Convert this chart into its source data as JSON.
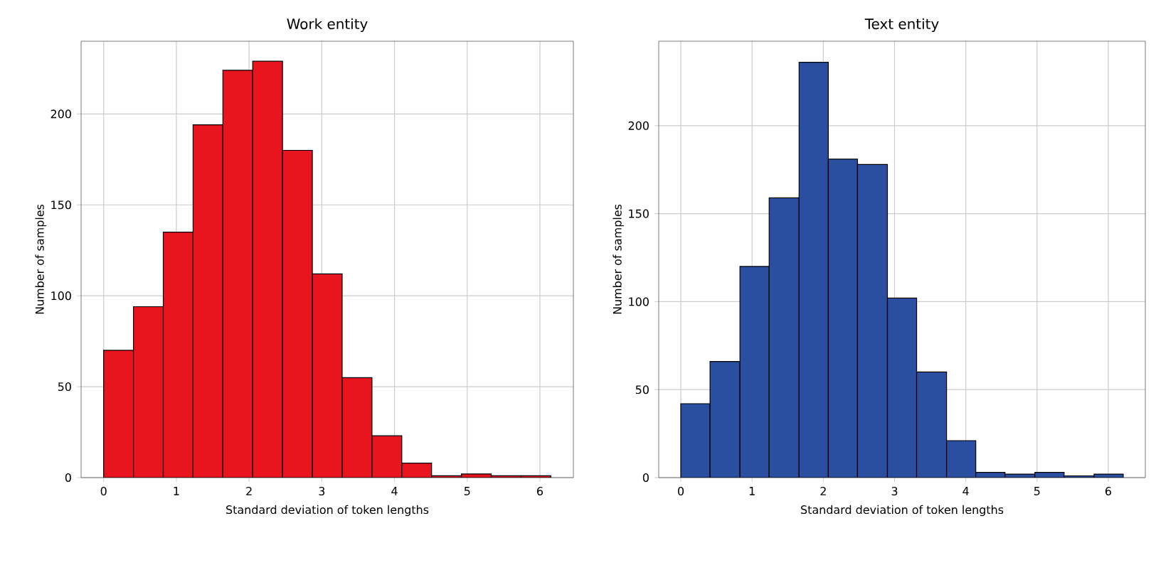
{
  "chart_data": [
    {
      "type": "histogram",
      "title": "Work entity",
      "xlabel": "Standard deviation of token lengths",
      "ylabel": "Number of samples",
      "color": "#e8141e",
      "bins": [
        0,
        0.41,
        0.82,
        1.23,
        1.64,
        2.05,
        2.46,
        2.87,
        3.28,
        3.69,
        4.1,
        4.51,
        4.92,
        5.33,
        5.74,
        6.15
      ],
      "values": [
        70,
        94,
        135,
        194,
        224,
        229,
        180,
        112,
        55,
        23,
        8,
        1,
        2,
        1,
        1
      ],
      "xlim": [
        -0.31,
        6.46
      ],
      "ylim": [
        0,
        240
      ],
      "xticks": [
        0,
        1,
        2,
        3,
        4,
        5,
        6
      ],
      "yticks": [
        0,
        50,
        100,
        150,
        200
      ],
      "grid": true
    },
    {
      "type": "histogram",
      "title": "Text entity",
      "xlabel": "Standard deviation of token lengths",
      "ylabel": "Number of samples",
      "color": "#2a4fa0",
      "bins": [
        0,
        0.41,
        0.83,
        1.24,
        1.66,
        2.07,
        2.48,
        2.9,
        3.31,
        3.73,
        4.14,
        4.55,
        4.97,
        5.38,
        5.8,
        6.21
      ],
      "values": [
        42,
        66,
        120,
        159,
        236,
        181,
        178,
        102,
        60,
        21,
        3,
        2,
        3,
        1,
        2
      ],
      "xlim": [
        -0.31,
        6.52
      ],
      "ylim": [
        0,
        248
      ],
      "xticks": [
        0,
        1,
        2,
        3,
        4,
        5,
        6
      ],
      "yticks": [
        0,
        50,
        100,
        150,
        200
      ],
      "grid": true
    }
  ]
}
